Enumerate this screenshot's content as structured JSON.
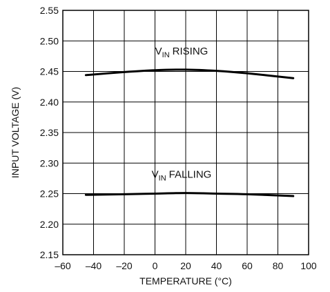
{
  "chart_data": {
    "type": "line",
    "title": "",
    "xlabel": "TEMPERATURE (°C)",
    "ylabel": "INPUT VOLTAGE (V)",
    "xlim": [
      -60,
      100
    ],
    "ylim": [
      2.15,
      2.55
    ],
    "x_ticks": [
      "–60",
      "–40",
      "–20",
      "0",
      "20",
      "40",
      "60",
      "80",
      "100"
    ],
    "y_ticks": [
      "2.15",
      "2.20",
      "2.25",
      "2.30",
      "2.35",
      "2.40",
      "2.45",
      "2.50",
      "2.55"
    ],
    "grid": true,
    "series": [
      {
        "name": "RISING",
        "name_prefix": "V",
        "name_sub": "IN",
        "x": [
          -45,
          -20,
          0,
          20,
          40,
          60,
          90
        ],
        "y": [
          2.444,
          2.449,
          2.452,
          2.453,
          2.451,
          2.447,
          2.439
        ]
      },
      {
        "name": "FALLING",
        "name_prefix": "V",
        "name_sub": "IN",
        "x": [
          -45,
          -20,
          0,
          20,
          40,
          60,
          90
        ],
        "y": [
          2.248,
          2.249,
          2.25,
          2.251,
          2.25,
          2.249,
          2.246
        ]
      }
    ]
  }
}
